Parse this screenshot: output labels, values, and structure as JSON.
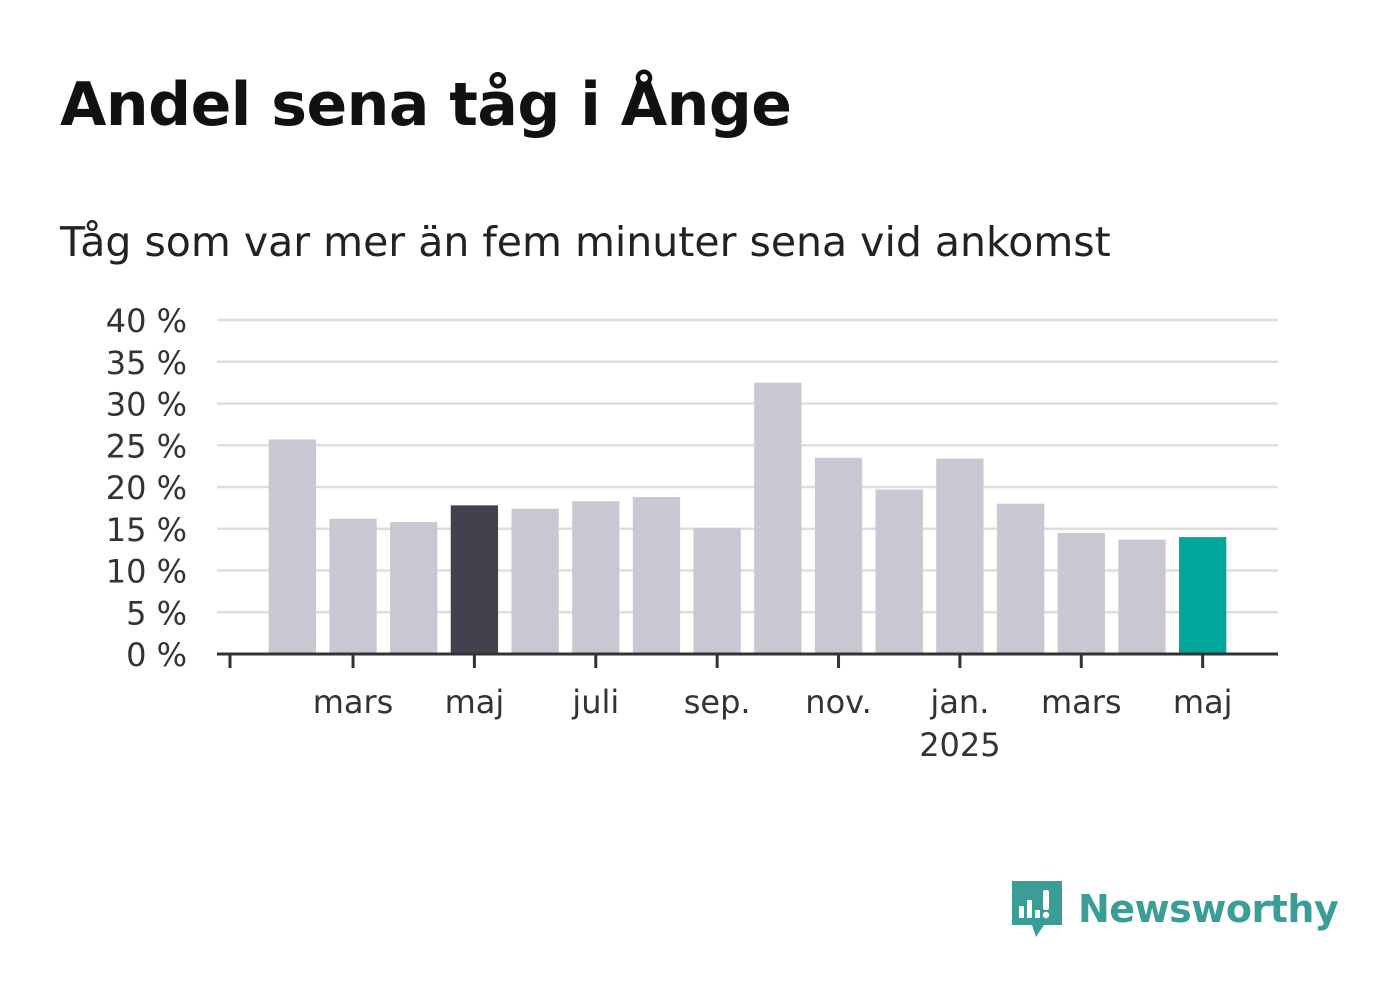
{
  "title": "Andel sena tåg i Ånge",
  "subtitle": "Tåg som var mer än fem minuter sena vid ankomst",
  "brand": {
    "name": "Newsworthy",
    "color": "#3a9e96",
    "icon": "newsworthy-logo-icon"
  },
  "colors": {
    "bar_default": "#c9c8d2",
    "bar_highlight_dark": "#43414e",
    "bar_highlight_current": "#00a699",
    "grid": "#dedede",
    "axis": "#333333",
    "text": "#333333"
  },
  "chart_data": {
    "type": "bar",
    "title": "Andel sena tåg i Ånge",
    "subtitle": "Tåg som var mer än fem minuter sena vid ankomst",
    "xlabel": "",
    "ylabel": "",
    "ylim": [
      0,
      40
    ],
    "y_ticks": [
      0,
      5,
      10,
      15,
      20,
      25,
      30,
      35,
      40
    ],
    "y_tick_labels": [
      "0 %",
      "5 %",
      "10 %",
      "15 %",
      "20 %",
      "25 %",
      "30 %",
      "35 %",
      "40 %"
    ],
    "grid": true,
    "legend": "none",
    "categories": [
      "2024-02",
      "2024-03",
      "2024-04",
      "2024-05",
      "2024-06",
      "2024-07",
      "2024-08",
      "2024-09",
      "2024-10",
      "2024-11",
      "2024-12",
      "2025-01",
      "2025-02",
      "2025-03",
      "2025-04",
      "2025-05"
    ],
    "values": [
      25.7,
      16.2,
      15.8,
      17.8,
      17.4,
      18.3,
      18.8,
      15.1,
      32.5,
      23.5,
      19.7,
      23.4,
      18.0,
      14.5,
      13.7,
      14.0
    ],
    "highlights": {
      "3": "bar_highlight_dark",
      "15": "bar_highlight_current"
    },
    "x_tick_labels": [
      {
        "index": 1,
        "label": "mars",
        "sublabel": ""
      },
      {
        "index": 3,
        "label": "maj",
        "sublabel": ""
      },
      {
        "index": 5,
        "label": "juli",
        "sublabel": ""
      },
      {
        "index": 7,
        "label": "sep.",
        "sublabel": ""
      },
      {
        "index": 9,
        "label": "nov.",
        "sublabel": ""
      },
      {
        "index": 11,
        "label": "jan.",
        "sublabel": "2025"
      },
      {
        "index": 13,
        "label": "mars",
        "sublabel": ""
      },
      {
        "index": 15,
        "label": "maj",
        "sublabel": ""
      }
    ]
  }
}
